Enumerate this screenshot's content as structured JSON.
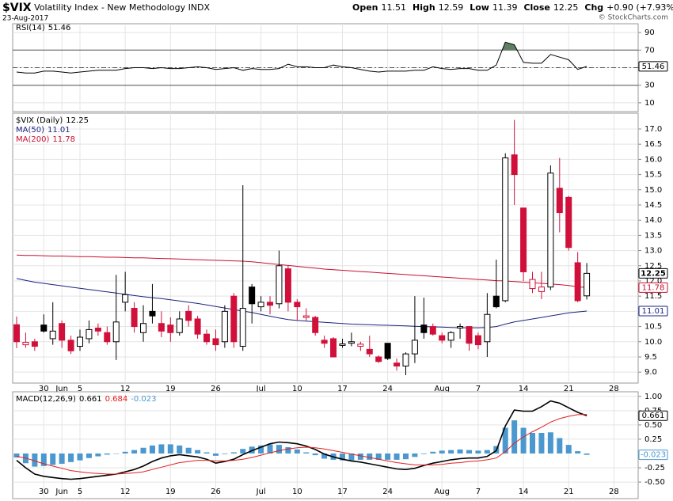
{
  "header": {
    "symbol": "$VIX",
    "name": "Volatility Index - New Methodology INDX",
    "date": "23-Aug-2017",
    "credit": "© StockCharts.com",
    "quote": [
      {
        "label": "Open",
        "value": "11.51"
      },
      {
        "label": "High",
        "value": "12.59"
      },
      {
        "label": "Low",
        "value": "11.39"
      },
      {
        "label": "Close",
        "value": "12.25"
      },
      {
        "label": "Chg",
        "value": "+0.90 (+7.93%)"
      }
    ]
  },
  "chart_data": [
    {
      "type": "line",
      "title": "RSI(14)",
      "ylim": [
        0,
        100
      ],
      "yticks": [
        10,
        30,
        50,
        70,
        90
      ],
      "levels": [
        70,
        30
      ],
      "midline": 50,
      "fill_color": "#5f7f63",
      "series": [
        {
          "color": "#000000",
          "value_label": "51.46",
          "values": [
            45,
            44,
            44,
            46,
            46,
            45,
            44,
            45,
            46,
            47,
            47,
            47,
            49,
            50,
            50,
            49,
            50,
            49,
            49,
            50,
            51,
            50,
            48,
            49,
            50,
            47,
            49,
            48,
            48,
            49,
            54,
            51,
            51,
            50,
            50,
            53,
            51,
            50,
            48,
            46,
            45,
            46,
            46,
            46,
            47,
            47,
            51,
            49,
            48,
            49,
            49,
            47,
            47,
            53,
            79,
            76,
            56,
            55,
            55,
            65,
            62,
            59,
            48,
            51.46,
            null,
            null,
            null,
            null,
            null
          ]
        }
      ]
    },
    {
      "type": "candlestick",
      "title": "$VIX (Daily)",
      "close_label": "12.25",
      "up_color": "#000000",
      "down_color": "#d0103a",
      "grid": true,
      "categories": [
        null,
        null,
        null,
        "30",
        null,
        "Jun",
        null,
        "5",
        null,
        null,
        null,
        null,
        "12",
        null,
        null,
        null,
        null,
        "19",
        null,
        null,
        null,
        null,
        "26",
        null,
        null,
        null,
        null,
        "Jul",
        null,
        null,
        null,
        "10",
        null,
        null,
        null,
        null,
        "17",
        null,
        null,
        null,
        null,
        "24",
        null,
        null,
        null,
        null,
        null,
        "Aug",
        null,
        null,
        null,
        "7",
        null,
        null,
        null,
        null,
        "14",
        null,
        null,
        null,
        null,
        "21",
        null,
        null,
        null,
        null,
        "28",
        null,
        null
      ],
      "open": [
        10.56,
        9.9,
        10.0,
        10.55,
        10.1,
        10.6,
        10.05,
        9.85,
        10.1,
        10.45,
        10.3,
        10.0,
        11.3,
        11.1,
        10.3,
        11.0,
        10.6,
        10.55,
        10.3,
        11.0,
        10.75,
        10.25,
        10.1,
        10.0,
        11.5,
        9.85,
        11.8,
        11.15,
        11.3,
        11.25,
        12.4,
        11.3,
        10.8,
        10.8,
        10.05,
        10.1,
        9.88,
        9.95,
        9.85,
        9.75,
        9.5,
        9.95,
        9.3,
        9.2,
        9.6,
        10.55,
        10.5,
        10.2,
        10.05,
        10.45,
        10.5,
        10.2,
        10.0,
        11.5,
        11.35,
        16.15,
        14.4,
        11.75,
        11.65,
        11.8,
        15.05,
        14.75,
        12.6,
        11.51,
        null,
        null,
        null,
        null,
        null
      ],
      "high": [
        10.83,
        10.3,
        10.1,
        10.9,
        11.3,
        10.7,
        10.2,
        10.4,
        10.7,
        10.6,
        10.5,
        12.2,
        12.3,
        11.3,
        11.2,
        11.9,
        11.0,
        10.8,
        11.0,
        11.2,
        10.85,
        10.4,
        10.4,
        11.2,
        11.6,
        15.15,
        11.9,
        11.5,
        11.5,
        13.0,
        12.5,
        11.4,
        11.1,
        10.85,
        10.2,
        10.15,
        10.1,
        10.3,
        10.0,
        10.2,
        9.55,
        9.95,
        9.45,
        9.65,
        11.5,
        11.45,
        10.6,
        10.3,
        10.35,
        10.6,
        10.5,
        10.3,
        11.6,
        12.7,
        16.2,
        17.3,
        14.4,
        12.3,
        12.3,
        15.8,
        16.05,
        14.8,
        12.95,
        12.59,
        null,
        null,
        null,
        null,
        null
      ],
      "low": [
        9.79,
        9.8,
        9.7,
        10.3,
        9.9,
        9.8,
        9.6,
        9.7,
        9.95,
        10.2,
        9.9,
        9.4,
        11.0,
        10.3,
        10.0,
        10.6,
        10.15,
        10.0,
        10.2,
        10.5,
        10.1,
        9.9,
        9.7,
        9.8,
        9.8,
        9.7,
        10.6,
        11.0,
        10.9,
        11.1,
        11.0,
        10.7,
        10.7,
        10.2,
        9.8,
        9.5,
        9.8,
        9.85,
        9.7,
        9.5,
        9.3,
        9.4,
        9.05,
        8.9,
        9.3,
        10.1,
        10.2,
        9.95,
        9.8,
        10.1,
        9.7,
        9.75,
        9.5,
        11.1,
        11.3,
        14.5,
        12.0,
        11.6,
        11.4,
        11.7,
        13.6,
        13.0,
        11.3,
        11.39,
        null,
        null,
        null,
        null,
        null
      ],
      "close": [
        10.0,
        9.98,
        9.85,
        10.35,
        10.35,
        10.05,
        9.7,
        10.15,
        10.4,
        10.35,
        10.0,
        10.65,
        11.55,
        10.5,
        10.6,
        10.85,
        10.35,
        10.3,
        10.75,
        10.7,
        10.25,
        10.0,
        9.9,
        11.0,
        10.0,
        11.1,
        11.25,
        11.3,
        11.2,
        12.5,
        11.3,
        11.15,
        10.85,
        10.3,
        9.95,
        9.5,
        9.93,
        10.0,
        9.92,
        9.6,
        9.35,
        9.45,
        9.2,
        9.6,
        10.05,
        10.3,
        10.25,
        10.05,
        10.3,
        10.5,
        9.95,
        9.9,
        10.9,
        11.15,
        16.05,
        15.5,
        12.3,
        12.05,
        11.8,
        15.55,
        14.25,
        13.1,
        11.35,
        12.25,
        null,
        null,
        null,
        null,
        null
      ],
      "ylim": [
        8.64,
        17.52
      ],
      "yticks": [
        {
          "value": 9,
          "label": "9.0"
        },
        9.5,
        {
          "value": 10,
          "label": "10.0"
        },
        10.5,
        {
          "value": 11,
          "label": "11.0"
        },
        11.5,
        {
          "value": 12,
          "label": "12.0"
        },
        12.5,
        {
          "value": 13,
          "label": "13.0"
        },
        13.5,
        {
          "value": 14,
          "label": "14.0"
        },
        14.5,
        {
          "value": 15,
          "label": "15.0"
        },
        15.5,
        {
          "value": 16,
          "label": "16.0"
        },
        16.5,
        {
          "value": 17,
          "label": "17.0"
        }
      ],
      "series": [
        {
          "name": "MA(50)",
          "color": "#1a237e",
          "value_label": "11.01",
          "values": [
            12.08,
            12.02,
            11.96,
            11.92,
            11.88,
            11.84,
            11.8,
            11.76,
            11.72,
            11.68,
            11.64,
            11.6,
            11.56,
            11.52,
            11.48,
            11.45,
            11.42,
            11.38,
            11.34,
            11.3,
            11.26,
            11.21,
            11.16,
            11.11,
            11.06,
            11.01,
            10.96,
            10.9,
            10.84,
            10.78,
            10.73,
            10.7,
            10.68,
            10.66,
            10.64,
            10.62,
            10.6,
            10.58,
            10.57,
            10.56,
            10.55,
            10.54,
            10.53,
            10.52,
            10.51,
            10.5,
            10.49,
            10.48,
            10.47,
            10.46,
            10.46,
            10.46,
            10.47,
            10.5,
            10.58,
            10.65,
            10.7,
            10.75,
            10.8,
            10.85,
            10.9,
            10.95,
            10.98,
            11.01,
            null,
            null,
            null,
            null,
            null
          ]
        },
        {
          "name": "MA(200)",
          "color": "#c8102e",
          "value_label": "11.78",
          "values": [
            12.85,
            12.84,
            12.84,
            12.83,
            12.82,
            12.82,
            12.81,
            12.8,
            12.8,
            12.79,
            12.78,
            12.78,
            12.77,
            12.76,
            12.76,
            12.75,
            12.74,
            12.73,
            12.72,
            12.71,
            12.7,
            12.69,
            12.68,
            12.67,
            12.66,
            12.65,
            12.63,
            12.6,
            12.57,
            12.54,
            12.51,
            12.48,
            12.45,
            12.42,
            12.39,
            12.37,
            12.35,
            12.33,
            12.31,
            12.29,
            12.27,
            12.25,
            12.23,
            12.21,
            12.19,
            12.17,
            12.15,
            12.13,
            12.11,
            12.09,
            12.07,
            12.05,
            12.03,
            12.01,
            12.0,
            11.98,
            11.96,
            11.94,
            11.92,
            11.9,
            11.88,
            11.85,
            11.81,
            11.78,
            null,
            null,
            null,
            null,
            null
          ]
        }
      ]
    },
    {
      "type": "macd",
      "title": "MACD(12,26,9)",
      "ylim": [
        -0.79,
        1.08
      ],
      "yticks": [
        {
          "value": 1,
          "label": "1.00"
        },
        0.75,
        {
          "value": 0.5,
          "label": "0.50"
        },
        0.25,
        -0.25,
        {
          "value": -0.5,
          "label": "-0.50"
        }
      ],
      "series": [
        {
          "color": "#000000",
          "value_label": "0.661",
          "values": [
            -0.12,
            -0.25,
            -0.36,
            -0.4,
            -0.42,
            -0.44,
            -0.45,
            -0.44,
            -0.42,
            -0.4,
            -0.38,
            -0.36,
            -0.32,
            -0.28,
            -0.22,
            -0.14,
            -0.08,
            -0.04,
            -0.02,
            -0.04,
            -0.06,
            -0.1,
            -0.17,
            -0.14,
            -0.1,
            -0.02,
            0.05,
            0.11,
            0.17,
            0.2,
            0.19,
            0.17,
            0.13,
            0.07,
            -0.01,
            -0.06,
            -0.1,
            -0.13,
            -0.15,
            -0.18,
            -0.21,
            -0.24,
            -0.27,
            -0.28,
            -0.26,
            -0.21,
            -0.17,
            -0.14,
            -0.11,
            -0.09,
            -0.08,
            -0.08,
            -0.05,
            0.05,
            0.48,
            0.76,
            0.74,
            0.74,
            0.82,
            0.92,
            0.88,
            0.8,
            0.72,
            0.661,
            null,
            null,
            null,
            null,
            null
          ]
        },
        {
          "color": "#e0201e",
          "value_label": "0.684",
          "values": [
            -0.05,
            -0.08,
            -0.13,
            -0.18,
            -0.22,
            -0.26,
            -0.3,
            -0.32,
            -0.34,
            -0.35,
            -0.36,
            -0.36,
            -0.35,
            -0.34,
            -0.32,
            -0.28,
            -0.24,
            -0.2,
            -0.16,
            -0.14,
            -0.12,
            -0.12,
            -0.13,
            -0.13,
            -0.12,
            -0.1,
            -0.07,
            -0.03,
            0.01,
            0.05,
            0.08,
            0.1,
            0.11,
            0.1,
            0.08,
            0.05,
            0.02,
            -0.01,
            -0.04,
            -0.07,
            -0.1,
            -0.13,
            -0.16,
            -0.18,
            -0.2,
            -0.2,
            -0.2,
            -0.19,
            -0.17,
            -0.16,
            -0.14,
            -0.13,
            -0.11,
            -0.08,
            0.03,
            0.18,
            0.29,
            0.38,
            0.46,
            0.55,
            0.61,
            0.65,
            0.68,
            0.684,
            null,
            null,
            null,
            null,
            null
          ]
        },
        {
          "type": "bar",
          "color": "#4a98cf",
          "value_label": "-0.023",
          "values": [
            -0.07,
            -0.17,
            -0.23,
            -0.22,
            -0.2,
            -0.18,
            -0.15,
            -0.12,
            -0.08,
            -0.05,
            -0.02,
            0.0,
            0.03,
            0.06,
            0.1,
            0.14,
            0.16,
            0.16,
            0.14,
            0.1,
            0.06,
            0.02,
            -0.04,
            -0.01,
            0.02,
            0.08,
            0.12,
            0.14,
            0.16,
            0.15,
            0.11,
            0.07,
            0.02,
            -0.03,
            -0.09,
            -0.11,
            -0.12,
            -0.12,
            -0.11,
            -0.11,
            -0.11,
            -0.11,
            -0.11,
            -0.1,
            -0.06,
            -0.01,
            0.03,
            0.05,
            0.06,
            0.07,
            0.06,
            0.05,
            0.06,
            0.13,
            0.45,
            0.58,
            0.45,
            0.36,
            0.36,
            0.37,
            0.27,
            0.15,
            0.04,
            -0.023,
            null,
            null,
            null,
            null,
            null
          ]
        }
      ]
    }
  ]
}
